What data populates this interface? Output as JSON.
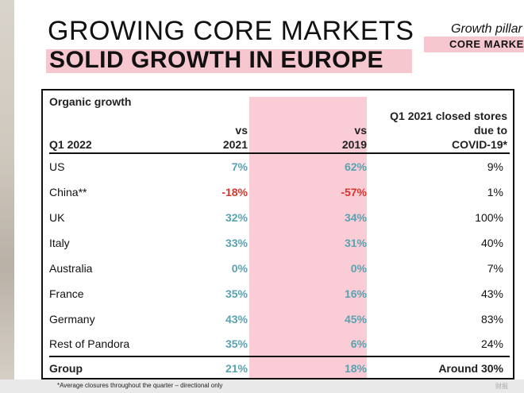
{
  "heading": {
    "title_line1": "GROWING CORE MARKETS",
    "title_line2": "SOLID GROWTH IN EUROPE",
    "pillar_label": "Growth pillar",
    "pillar_badge": "CORE MARKETS"
  },
  "table": {
    "header": {
      "section": "Organic growth",
      "period": "Q1 2022",
      "col1": [
        "vs",
        "2021"
      ],
      "col2": [
        "vs",
        "2019"
      ],
      "col3": [
        "Q1 2021 closed stores",
        "due to",
        "COVID-19*"
      ]
    },
    "rows": [
      {
        "market": "US",
        "vs2021": "7%",
        "vs2019": "62%",
        "closed": "9%",
        "neg": false
      },
      {
        "market": "China**",
        "vs2021": "-18%",
        "vs2019": "-57%",
        "closed": "1%",
        "neg": true
      },
      {
        "market": "UK",
        "vs2021": "32%",
        "vs2019": "34%",
        "closed": "100%",
        "neg": false
      },
      {
        "market": "Italy",
        "vs2021": "33%",
        "vs2019": "31%",
        "closed": "40%",
        "neg": false
      },
      {
        "market": "Australia",
        "vs2021": "0%",
        "vs2019": "0%",
        "closed": "7%",
        "neg": false
      },
      {
        "market": "France",
        "vs2021": "35%",
        "vs2019": "16%",
        "closed": "43%",
        "neg": false
      },
      {
        "market": "Germany",
        "vs2021": "43%",
        "vs2019": "45%",
        "closed": "83%",
        "neg": false
      },
      {
        "market": "Rest of Pandora",
        "vs2021": "35%",
        "vs2019": "6%",
        "closed": "24%",
        "neg": false
      }
    ],
    "total": {
      "market": "Group",
      "vs2021": "21%",
      "vs2019": "18%",
      "closed": "Around 30%"
    }
  },
  "footnote": "*Average closures throughout the quarter – directional only",
  "watermark": "财报",
  "colors": {
    "accent_pink": "#f7c7d0",
    "positive": "#58a3b1",
    "negative": "#d9352b"
  }
}
